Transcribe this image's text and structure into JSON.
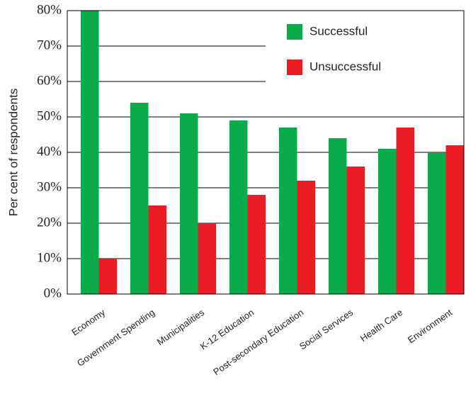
{
  "chart_data": {
    "type": "bar",
    "title": "",
    "xlabel": "",
    "ylabel": "Per cent of respondents",
    "categories": [
      "Economy",
      "Government Spending",
      "Municipalities",
      "K-12 Education",
      "Post-secondary Education",
      "Social Services",
      "Health Care",
      "Environment"
    ],
    "series": [
      {
        "name": "Successful",
        "color": "#0aac4a",
        "values": [
          80,
          54,
          51,
          49,
          47,
          44,
          41,
          40
        ]
      },
      {
        "name": "Unsuccessful",
        "color": "#ec1c24",
        "values": [
          10,
          25,
          20,
          28,
          32,
          36,
          47,
          42
        ]
      }
    ],
    "ylim": [
      0,
      80
    ],
    "yticks": [
      "0%",
      "10%",
      "20%",
      "30%",
      "40%",
      "50%",
      "60%",
      "70%",
      "80%"
    ],
    "grid": true,
    "legend_position": "top-right"
  }
}
